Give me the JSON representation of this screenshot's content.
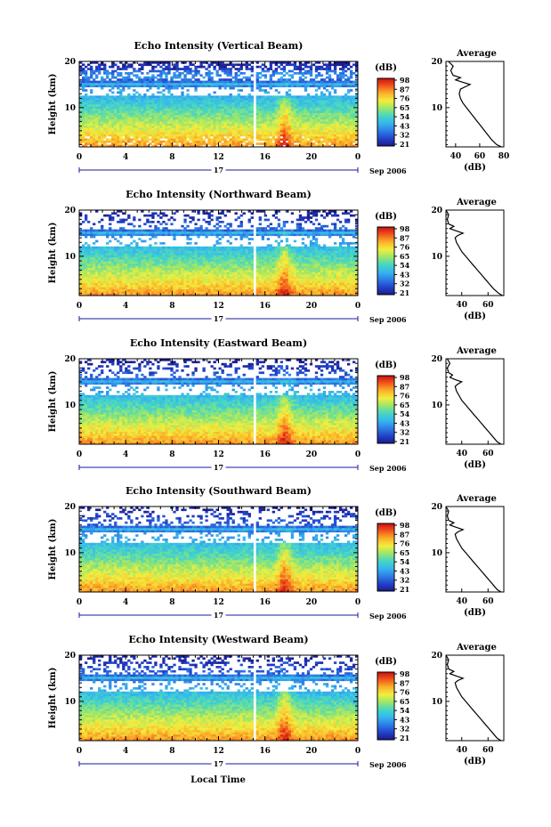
{
  "xlabel": "Local Time",
  "date_label": "Sep 2006",
  "day_label": "17",
  "time_ticks": [
    "0",
    "4",
    "8",
    "12",
    "16",
    "20",
    "0"
  ],
  "colorbar": {
    "label": "(dB)",
    "ticks": [
      "98",
      "87",
      "76",
      "65",
      "54",
      "43",
      "32",
      "21"
    ],
    "colormap": [
      "#1c1a8c",
      "#2244cc",
      "#2f7ee6",
      "#35b6ee",
      "#46d6c4",
      "#9ae66a",
      "#f2ee3e",
      "#fbb22a",
      "#f2581c",
      "#c80f12"
    ]
  },
  "chart_data": [
    {
      "type": "heatmap",
      "title": "Echo Intensity (Vertical Beam)",
      "ylabel": "Height (km)",
      "yticks": [
        "20",
        "10"
      ],
      "xlim": [
        0,
        24
      ],
      "ylim": [
        1.5,
        20
      ],
      "clim": [
        21,
        98
      ],
      "profile": {
        "title": "Average",
        "xlabel": "(dB)",
        "xticks": [
          "40",
          "60",
          "80"
        ],
        "xlim": [
          32,
          80
        ],
        "heights": [
          1.5,
          2,
          3,
          4,
          5,
          6,
          7,
          8,
          9,
          10,
          11,
          12,
          13,
          14,
          14.5,
          15,
          15.5,
          16,
          16.5,
          17,
          18,
          19,
          20
        ],
        "values": [
          78,
          74,
          70,
          67,
          64,
          61,
          58,
          55,
          52,
          49,
          46,
          44,
          43,
          44,
          48,
          52,
          46,
          40,
          44,
          38,
          36,
          38,
          34
        ]
      }
    },
    {
      "type": "heatmap",
      "title": "Echo Intensity (Northward Beam)",
      "ylabel": "Height (km)",
      "yticks": [
        "20",
        "10"
      ],
      "xlim": [
        0,
        24
      ],
      "ylim": [
        1.5,
        20
      ],
      "clim": [
        21,
        98
      ],
      "profile": {
        "title": "Average",
        "xlabel": "(dB)",
        "xticks": [
          "40",
          "60"
        ],
        "xlim": [
          28,
          72
        ],
        "heights": [
          1.5,
          2,
          3,
          4,
          5,
          6,
          7,
          8,
          9,
          10,
          11,
          12,
          13,
          14,
          14.5,
          15,
          15.5,
          16,
          16.5,
          17,
          18,
          19,
          20
        ],
        "values": [
          71,
          68,
          64,
          61,
          58,
          55,
          52,
          49,
          46,
          43,
          40,
          38,
          36,
          35,
          37,
          41,
          36,
          31,
          34,
          30,
          29,
          30,
          28
        ]
      }
    },
    {
      "type": "heatmap",
      "title": "Echo Intensity (Eastward Beam)",
      "ylabel": "Height (km)",
      "yticks": [
        "20",
        "10"
      ],
      "xlim": [
        0,
        24
      ],
      "ylim": [
        1.5,
        20
      ],
      "clim": [
        21,
        98
      ],
      "profile": {
        "title": "Average",
        "xlabel": "(dB)",
        "xticks": [
          "40",
          "60"
        ],
        "xlim": [
          28,
          72
        ],
        "heights": [
          1.5,
          2,
          3,
          4,
          5,
          6,
          7,
          8,
          9,
          10,
          11,
          12,
          13,
          14,
          14.5,
          15,
          15.5,
          16,
          16.5,
          17,
          18,
          19,
          20
        ],
        "values": [
          70,
          67,
          64,
          61,
          58,
          55,
          52,
          49,
          46,
          43,
          40,
          38,
          36,
          35,
          37,
          40,
          35,
          31,
          33,
          30,
          29,
          31,
          29
        ]
      }
    },
    {
      "type": "heatmap",
      "title": "Echo Intensity (Southward Beam)",
      "ylabel": "Height (km)",
      "yticks": [
        "20",
        "10"
      ],
      "xlim": [
        0,
        24
      ],
      "ylim": [
        1.5,
        20
      ],
      "clim": [
        21,
        98
      ],
      "profile": {
        "title": "Average",
        "xlabel": "(dB)",
        "xticks": [
          "40",
          "60"
        ],
        "xlim": [
          28,
          72
        ],
        "heights": [
          1.5,
          2,
          3,
          4,
          5,
          6,
          7,
          8,
          9,
          10,
          11,
          12,
          13,
          14,
          14.5,
          15,
          15.5,
          16,
          16.5,
          17,
          18,
          19,
          20
        ],
        "values": [
          70,
          67,
          64,
          61,
          58,
          55,
          52,
          49,
          46,
          43,
          40,
          38,
          36,
          35,
          37,
          41,
          36,
          31,
          34,
          30,
          29,
          30,
          28
        ]
      }
    },
    {
      "type": "heatmap",
      "title": "Echo Intensity (Westward Beam)",
      "ylabel": "Height (km)",
      "yticks": [
        "20",
        "10"
      ],
      "xlim": [
        0,
        24
      ],
      "ylim": [
        1.5,
        20
      ],
      "clim": [
        21,
        98
      ],
      "profile": {
        "title": "Average",
        "xlabel": "(dB)",
        "xticks": [
          "40",
          "60"
        ],
        "xlim": [
          28,
          72
        ],
        "heights": [
          1.5,
          2,
          3,
          4,
          5,
          6,
          7,
          8,
          9,
          10,
          11,
          12,
          13,
          14,
          14.5,
          15,
          15.5,
          16,
          16.5,
          17,
          18,
          19,
          20
        ],
        "values": [
          70,
          67,
          64,
          61,
          58,
          55,
          52,
          49,
          46,
          43,
          40,
          38,
          36,
          35,
          37,
          41,
          36,
          31,
          34,
          30,
          29,
          30,
          28
        ]
      }
    }
  ]
}
